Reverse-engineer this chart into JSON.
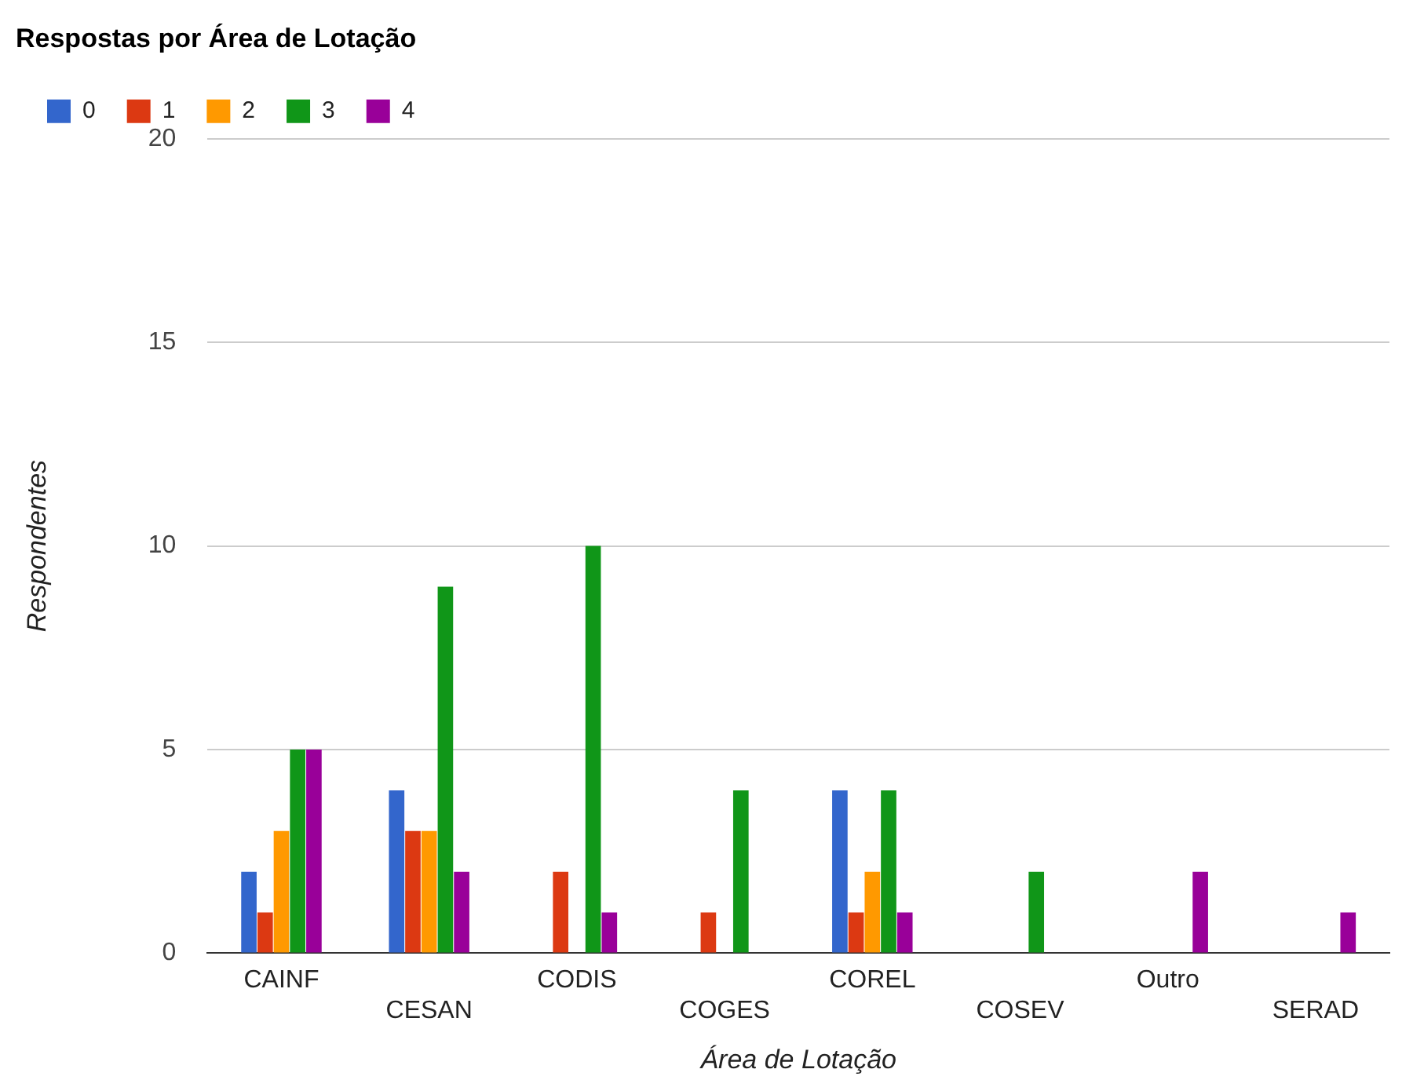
{
  "chart_data": {
    "type": "bar",
    "title": "Respostas por Área de Lotação",
    "xlabel": "Área de Lotação",
    "ylabel": "Respondentes",
    "categories": [
      "CAINF",
      "CESAN",
      "CODIS",
      "COGES",
      "COREL",
      "COSEV",
      "Outro",
      "SERAD"
    ],
    "series": [
      {
        "name": "0",
        "color": "#3366cc",
        "values": [
          2,
          4,
          0,
          0,
          4,
          0,
          0,
          0
        ]
      },
      {
        "name": "1",
        "color": "#dc3912",
        "values": [
          1,
          3,
          2,
          1,
          1,
          0,
          0,
          0
        ]
      },
      {
        "name": "2",
        "color": "#ff9900",
        "values": [
          3,
          3,
          0,
          0,
          2,
          0,
          0,
          0
        ]
      },
      {
        "name": "3",
        "color": "#109618",
        "values": [
          5,
          9,
          10,
          4,
          4,
          2,
          0,
          0
        ]
      },
      {
        "name": "4",
        "color": "#990099",
        "values": [
          5,
          2,
          1,
          0,
          1,
          0,
          2,
          1
        ]
      }
    ],
    "ylim": [
      0,
      20
    ],
    "yticks": [
      0,
      5,
      10,
      15,
      20
    ],
    "grid": "y",
    "legend": "top left"
  }
}
